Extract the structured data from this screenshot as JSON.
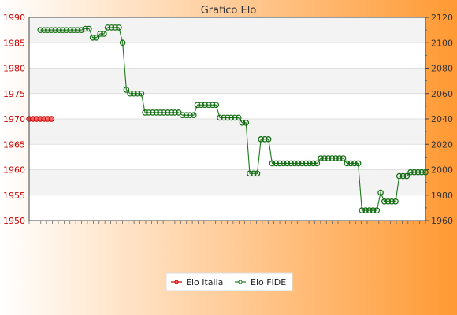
{
  "chart_data": {
    "type": "line",
    "title": "Grafico Elo",
    "background": {
      "gradient_from": "#ffffff",
      "gradient_to": "#ff9933"
    },
    "plot_bands": [
      "#f3f3f3",
      "#ffffff"
    ],
    "left_axis": {
      "range": [
        1950,
        1990
      ],
      "ticks": [
        1950,
        1955,
        1960,
        1965,
        1970,
        1975,
        1980,
        1985,
        1990
      ],
      "color": "#cc0000"
    },
    "right_axis": {
      "range": [
        1960,
        2120
      ],
      "ticks": [
        1960,
        1980,
        2000,
        2020,
        2040,
        2060,
        2080,
        2100,
        2120
      ],
      "color": "#333333"
    },
    "x_tick_count": 68,
    "series": [
      {
        "name": "Elo Italia",
        "axis": "left",
        "color": "#cc0000",
        "marker_color": "#ff6666",
        "values": [
          1970,
          1970,
          1970,
          1970,
          1970,
          1970,
          1970
        ]
      },
      {
        "name": "Elo FIDE",
        "axis": "right",
        "color": "#1a7a1a",
        "marker_color": "#0f6a0f",
        "start_index": 3,
        "values": [
          2110,
          2110,
          2110,
          2110,
          2110,
          2110,
          2110,
          2110,
          2110,
          2110,
          2110,
          2110,
          2111,
          2111,
          2104,
          2104,
          2107,
          2107,
          2112,
          2112,
          2112,
          2112,
          2100,
          2063,
          2060,
          2060,
          2060,
          2060,
          2045,
          2045,
          2045,
          2045,
          2045,
          2045,
          2045,
          2045,
          2045,
          2045,
          2043,
          2043,
          2043,
          2043,
          2051,
          2051,
          2051,
          2051,
          2051,
          2051,
          2041,
          2041,
          2041,
          2041,
          2041,
          2041,
          2037,
          2037,
          1997,
          1997,
          1997,
          2024,
          2024,
          2024,
          2005,
          2005,
          2005,
          2005,
          2005,
          2005,
          2005,
          2005,
          2005,
          2005,
          2005,
          2005,
          2005,
          2009,
          2009,
          2009,
          2009,
          2009,
          2009,
          2009,
          2005,
          2005,
          2005,
          2005,
          1968,
          1968,
          1968,
          1968,
          1968,
          1982,
          1975,
          1975,
          1975,
          1975,
          1995,
          1995,
          1995,
          1998,
          1998,
          1998,
          1998,
          1998
        ]
      }
    ],
    "legend": {
      "placement": "bottom-center"
    }
  }
}
